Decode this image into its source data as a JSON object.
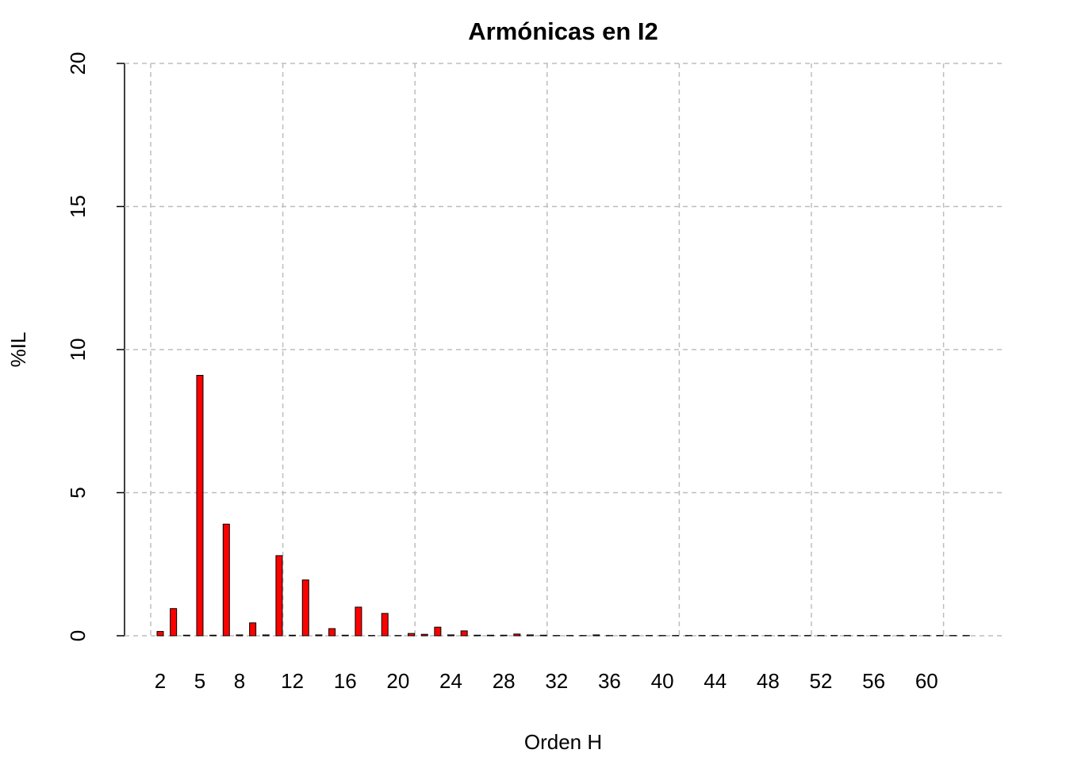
{
  "chart_data": {
    "type": "bar",
    "title": "Armónicas en I2",
    "x_label": "Orden H",
    "y_label": "%IL",
    "categories": [
      "2",
      null,
      null,
      "5",
      null,
      null,
      "8",
      null,
      null,
      null,
      "12",
      null,
      null,
      null,
      "16",
      null,
      null,
      null,
      "20",
      null,
      null,
      null,
      "24",
      null,
      null,
      null,
      "28",
      null,
      null,
      null,
      "32",
      null,
      null,
      null,
      "36",
      null,
      null,
      null,
      "40",
      null,
      null,
      null,
      "44",
      null,
      null,
      null,
      "48",
      null,
      null,
      null,
      "52",
      null,
      null,
      null,
      "56",
      null,
      null,
      null,
      "60",
      null,
      null,
      null
    ],
    "values": [
      0.15,
      0.95,
      0.02,
      9.1,
      0.02,
      3.9,
      0.03,
      0.45,
      0.03,
      2.8,
      0.02,
      1.95,
      0.03,
      0.25,
      0.02,
      1.0,
      0.01,
      0.78,
      0.01,
      0.08,
      0.05,
      0.3,
      0.03,
      0.17,
      0.02,
      0.02,
      0.02,
      0.06,
      0.03,
      0.02,
      0.01,
      0.01,
      0.01,
      0.03,
      0.01,
      0.01,
      0.01,
      0.01,
      0.01,
      0.01,
      0.01,
      0.01,
      0.01,
      0.01,
      0.01,
      0.01,
      0.01,
      0.01,
      0.01,
      0.01,
      0.01,
      0.01,
      0.01,
      0.01,
      0.01,
      0.01,
      0.01,
      0.01,
      0.01,
      0.01,
      0.01,
      0.01
    ],
    "color": "#ff0000",
    "ylim": [
      0,
      20
    ],
    "yticks": [
      0,
      5,
      10,
      15,
      20
    ],
    "grid": true
  }
}
